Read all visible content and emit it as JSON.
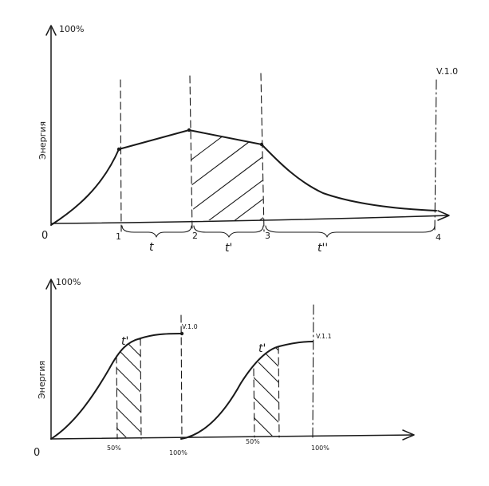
{
  "top_diagram": {
    "y_max_label": "100%",
    "y_axis_label": "Энергия",
    "origin_label": "0",
    "version_label": "V.1.0",
    "x_point_labels": [
      "1",
      "2",
      "3",
      "4"
    ],
    "interval_labels": [
      "t",
      "t'",
      "t''"
    ]
  },
  "bottom_diagram": {
    "y_max_label": "100%",
    "y_axis_label": "Энергия",
    "origin_label": "0",
    "curve1_version_label": "V.1.0",
    "curve2_version_label": "V.1.1",
    "curve1_interval_label": "t'",
    "curve2_interval_label": "t'",
    "curve1_x_mid_label": "50%",
    "curve1_x_end_label": "100%",
    "curve2_x_mid_label": "50%",
    "curve2_x_end_label": "100%"
  }
}
